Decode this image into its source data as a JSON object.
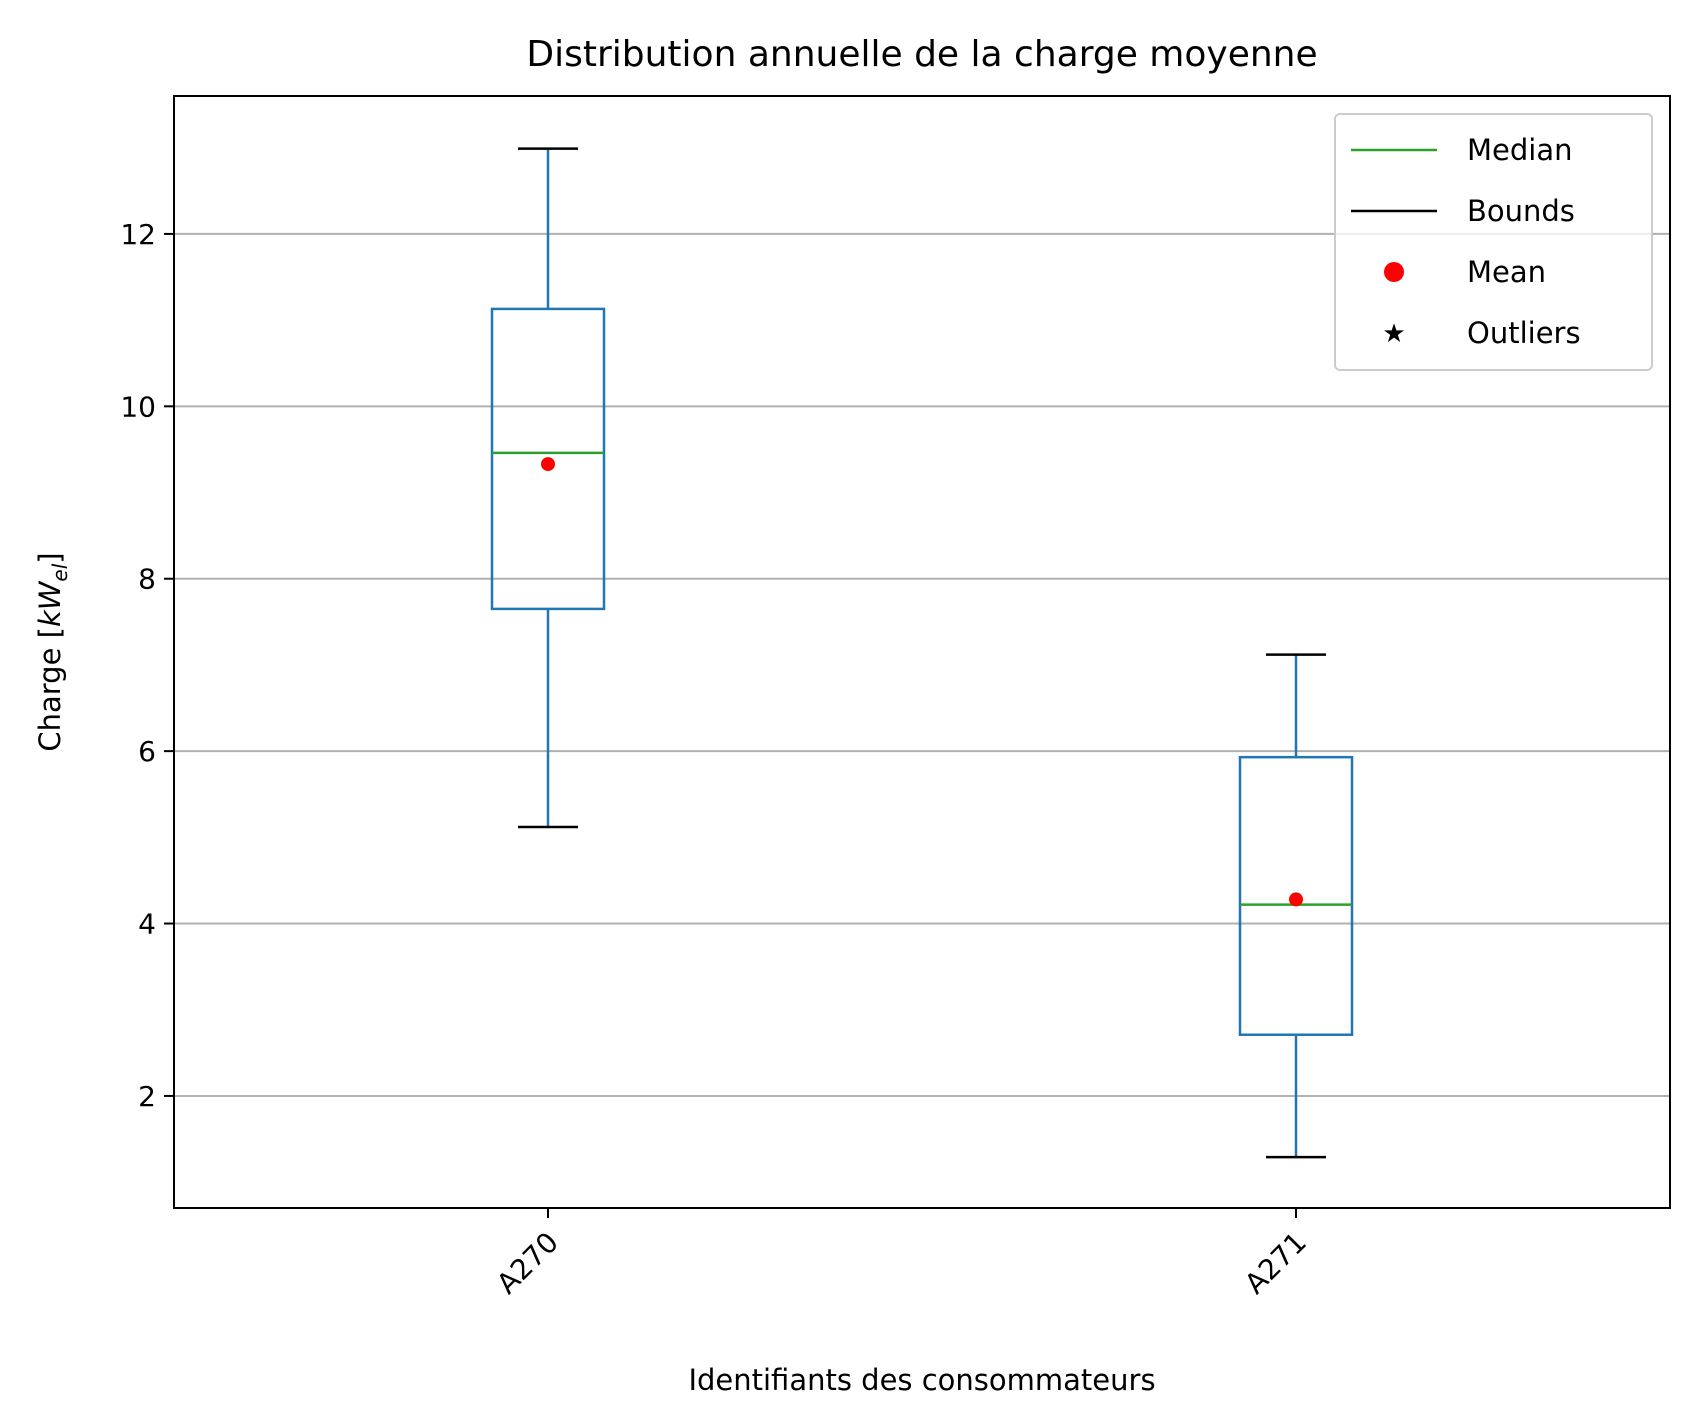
{
  "chart_data": {
    "type": "box",
    "title": "Distribution annuelle de la charge moyenne",
    "xlabel": "Identifiants des consommateurs",
    "ylabel_main": "Charge [",
    "ylabel_var": "kW",
    "ylabel_sub": "el",
    "ylabel_end": "]",
    "ylim": [
      0.7,
      13.6
    ],
    "yticks": [
      2,
      4,
      6,
      8,
      10,
      12
    ],
    "categories": [
      "A270",
      "A271"
    ],
    "grid": "y",
    "legend_position": "top-right",
    "boxes": [
      {
        "name": "A270",
        "whisker_low": 5.12,
        "q1": 7.65,
        "median": 9.46,
        "mean": 9.33,
        "q3": 11.13,
        "whisker_high": 12.99,
        "outliers": []
      },
      {
        "name": "A271",
        "whisker_low": 1.29,
        "q1": 2.71,
        "median": 4.22,
        "mean": 4.28,
        "q3": 5.93,
        "whisker_high": 7.12,
        "outliers": []
      }
    ],
    "legend": [
      {
        "label": "Median",
        "symbol": "line",
        "color": "#2ca02c"
      },
      {
        "label": "Bounds",
        "symbol": "line",
        "color": "#000000"
      },
      {
        "label": "Mean",
        "symbol": "dot",
        "color": "#ff0000"
      },
      {
        "label": "Outliers",
        "symbol": "star",
        "color": "#000000"
      }
    ],
    "colors": {
      "box": "#1f77b4",
      "median": "#2ca02c",
      "mean": "#ff0000",
      "cap": "#000000",
      "grid": "#b0b0b0"
    }
  }
}
